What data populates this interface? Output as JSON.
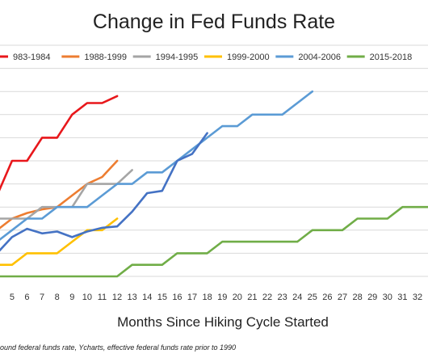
{
  "chart_data": {
    "type": "line",
    "title": "Change in Fed Funds Rate",
    "xlabel": "Months Since Hiking Cycle Started",
    "ylabel": "",
    "source_note": "ound federal funds rate, Ycharts, effective federal funds rate prior to 1990",
    "x_ticks": [
      "5",
      "6",
      "7",
      "8",
      "9",
      "10",
      "11",
      "12",
      "13",
      "14",
      "15",
      "16",
      "17",
      "18",
      "19",
      "20",
      "21",
      "22",
      "23",
      "24",
      "25",
      "26",
      "27",
      "28",
      "29",
      "30",
      "31",
      "32"
    ],
    "xlim": [
      4.2,
      32.7
    ],
    "ylim": [
      -0.25,
      4.75
    ],
    "grid": true,
    "legend_position": "top",
    "series": [
      {
        "name": "983-1984",
        "color": "#e8171b",
        "points": [
          [
            4,
            1.5
          ],
          [
            5,
            2.25
          ],
          [
            6,
            2.25
          ],
          [
            7,
            2.75
          ],
          [
            8,
            2.75
          ],
          [
            9,
            3.25
          ],
          [
            10,
            3.5
          ],
          [
            11,
            3.5
          ],
          [
            12,
            3.65
          ]
        ]
      },
      {
        "name": "1988-1999",
        "color": "#ed7d31",
        "points": [
          [
            4,
            0.75
          ],
          [
            5,
            1.0
          ],
          [
            6,
            1.12
          ],
          [
            7,
            1.2
          ],
          [
            8,
            1.25
          ],
          [
            9,
            1.5
          ],
          [
            10,
            1.75
          ],
          [
            11,
            1.9
          ],
          [
            12,
            2.25
          ]
        ]
      },
      {
        "name": "1994-1995",
        "color": "#a5a5a5",
        "points": [
          [
            4,
            1.0
          ],
          [
            5,
            1.0
          ],
          [
            6,
            1.0
          ],
          [
            7,
            1.25
          ],
          [
            8,
            1.25
          ],
          [
            9,
            1.25
          ],
          [
            10,
            1.75
          ],
          [
            11,
            1.75
          ],
          [
            12,
            1.75
          ],
          [
            13,
            2.05
          ]
        ]
      },
      {
        "name": "1999-2000",
        "color": "#ffc000",
        "points": [
          [
            4,
            0
          ],
          [
            5,
            0
          ],
          [
            6,
            0.25
          ],
          [
            7,
            0.25
          ],
          [
            8,
            0.25
          ],
          [
            9,
            0.5
          ],
          [
            10,
            0.75
          ],
          [
            11,
            0.75
          ],
          [
            12,
            1.0
          ]
        ]
      },
      {
        "name": "2004-2006",
        "color": "#5b9bd5",
        "points": [
          [
            4,
            0.5
          ],
          [
            5,
            0.75
          ],
          [
            6,
            1.0
          ],
          [
            7,
            1.0
          ],
          [
            8,
            1.25
          ],
          [
            9,
            1.25
          ],
          [
            10,
            1.25
          ],
          [
            11,
            1.5
          ],
          [
            12,
            1.75
          ],
          [
            13,
            1.75
          ],
          [
            14,
            2.0
          ],
          [
            15,
            2.0
          ],
          [
            16,
            2.25
          ],
          [
            17,
            2.5
          ],
          [
            18,
            2.75
          ],
          [
            19,
            3.0
          ],
          [
            20,
            3.0
          ],
          [
            21,
            3.25
          ],
          [
            22,
            3.25
          ],
          [
            23,
            3.25
          ],
          [
            24,
            3.5
          ],
          [
            25,
            3.75
          ]
        ]
      },
      {
        "name": "",
        "color": "#4472c4",
        "points": [
          [
            4,
            0.25
          ],
          [
            5,
            0.6
          ],
          [
            6,
            0.78
          ],
          [
            7,
            0.68
          ],
          [
            8,
            0.72
          ],
          [
            9,
            0.6
          ],
          [
            10,
            0.72
          ],
          [
            11,
            0.8
          ],
          [
            12,
            0.83
          ],
          [
            13,
            1.15
          ],
          [
            14,
            1.55
          ],
          [
            15,
            1.6
          ],
          [
            16,
            2.25
          ],
          [
            17,
            2.4
          ],
          [
            18,
            2.85
          ]
        ]
      },
      {
        "name": "2015-2018",
        "color": "#70ad47",
        "points": [
          [
            4,
            -0.25
          ],
          [
            5,
            -0.25
          ],
          [
            6,
            -0.25
          ],
          [
            7,
            -0.25
          ],
          [
            8,
            -0.25
          ],
          [
            9,
            -0.25
          ],
          [
            10,
            -0.25
          ],
          [
            11,
            -0.25
          ],
          [
            12,
            -0.25
          ],
          [
            13,
            0
          ],
          [
            14,
            0
          ],
          [
            15,
            0
          ],
          [
            16,
            0.25
          ],
          [
            17,
            0.25
          ],
          [
            18,
            0.25
          ],
          [
            19,
            0.5
          ],
          [
            20,
            0.5
          ],
          [
            21,
            0.5
          ],
          [
            22,
            0.5
          ],
          [
            23,
            0.5
          ],
          [
            24,
            0.5
          ],
          [
            25,
            0.75
          ],
          [
            26,
            0.75
          ],
          [
            27,
            0.75
          ],
          [
            28,
            1.0
          ],
          [
            29,
            1.0
          ],
          [
            30,
            1.0
          ],
          [
            31,
            1.25
          ],
          [
            32,
            1.25
          ],
          [
            33,
            1.25
          ]
        ]
      }
    ]
  }
}
